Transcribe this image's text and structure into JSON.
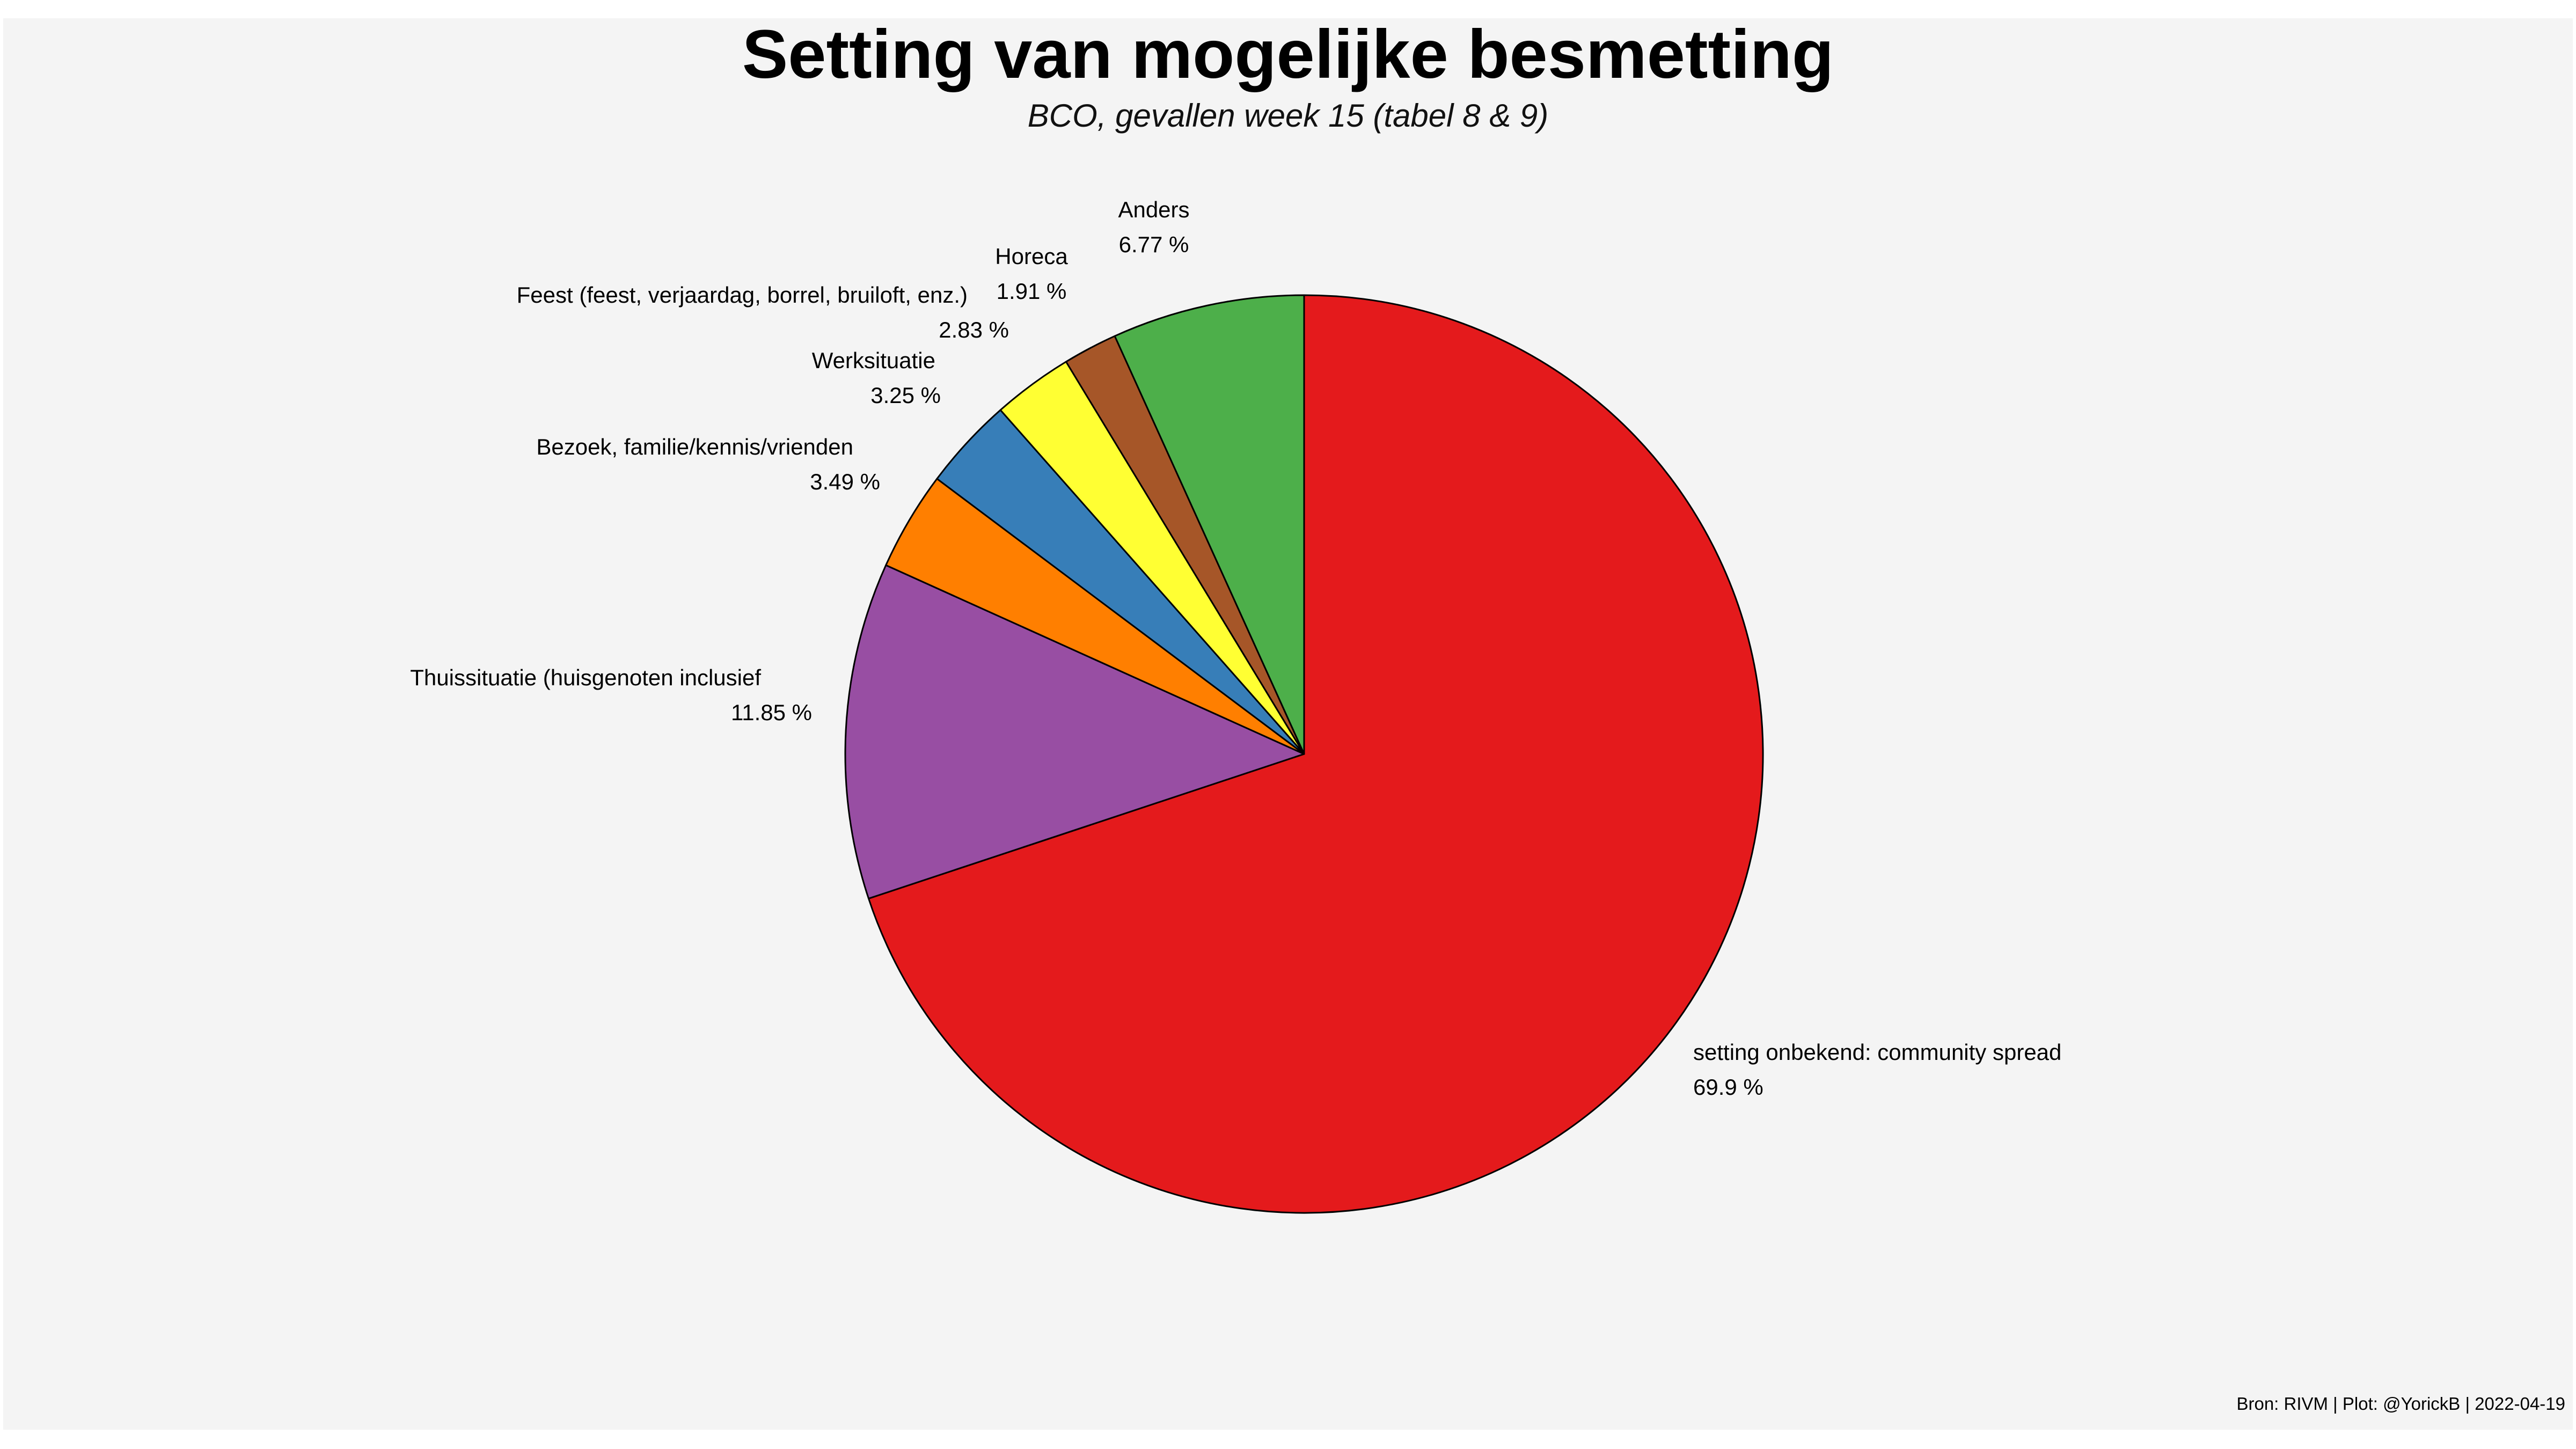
{
  "title": "Setting van mogelijke besmetting",
  "subtitle": "BCO, gevallen week 15  (tabel 8 & 9)",
  "caption": "Bron: RIVM | Plot: @YorickB |  2022-04-19",
  "chart_data": {
    "type": "pie",
    "start": "12 o'clock",
    "direction": "clockwise",
    "value_suffix": " %",
    "slices": [
      {
        "label": "setting onbekend: community spread",
        "value": 69.9,
        "display": "69.9",
        "color": "#e41a1c"
      },
      {
        "label": "Thuissituatie (huisgenoten inclusief",
        "value": 11.85,
        "display": "11.85",
        "color": "#984ea3"
      },
      {
        "label": "Bezoek, familie/kennis/vrienden",
        "value": 3.49,
        "display": "3.49",
        "color": "#ff7f00"
      },
      {
        "label": "Werksituatie",
        "value": 3.25,
        "display": "3.25",
        "color": "#377eb8"
      },
      {
        "label": "Feest (feest, verjaardag, borrel, bruiloft, enz.)",
        "value": 2.83,
        "display": "2.83",
        "color": "#ffff33"
      },
      {
        "label": "Horeca",
        "value": 1.91,
        "display": "1.91",
        "color": "#a65628"
      },
      {
        "label": "Anders",
        "value": 6.77,
        "display": "6.77",
        "color": "#4daf4a"
      }
    ]
  }
}
